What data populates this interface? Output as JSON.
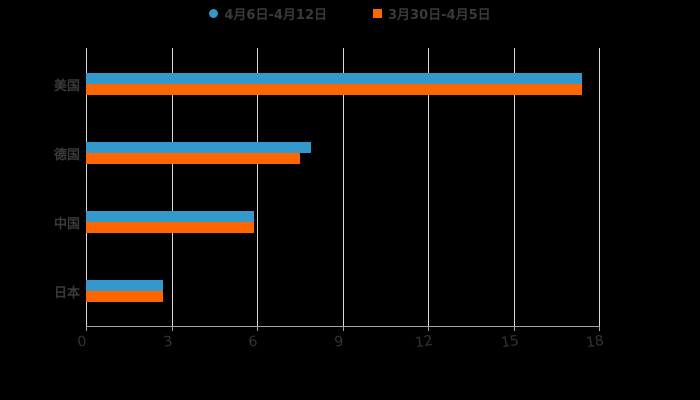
{
  "legend": [
    {
      "label": "4月6日-4月12日",
      "color": "#3399cc",
      "shape": "circle"
    },
    {
      "label": "3月30日-4月5日",
      "color": "#ff6600",
      "shape": "square"
    }
  ],
  "axis": {
    "ticks": [
      "0",
      "3",
      "6",
      "9",
      "12",
      "15",
      "18"
    ],
    "min": 0,
    "max": 18
  },
  "categories": [
    "美国",
    "德国",
    "中国",
    "日本"
  ],
  "chart_data": {
    "type": "bar",
    "orientation": "horizontal",
    "title": "",
    "xlabel": "",
    "ylabel": "",
    "categories": [
      "美国",
      "德国",
      "中国",
      "日本"
    ],
    "series": [
      {
        "name": "4月6日-4月12日",
        "color": "#3399cc",
        "values": [
          17.4,
          7.9,
          5.9,
          2.7
        ]
      },
      {
        "name": "3月30日-4月5日",
        "color": "#ff6600",
        "values": [
          17.4,
          7.5,
          5.9,
          2.7
        ]
      }
    ],
    "xlim": [
      0,
      18
    ],
    "xticks": [
      0,
      3,
      6,
      9,
      12,
      15,
      18
    ],
    "grid": true,
    "legend_position": "top",
    "background": "#000000"
  }
}
